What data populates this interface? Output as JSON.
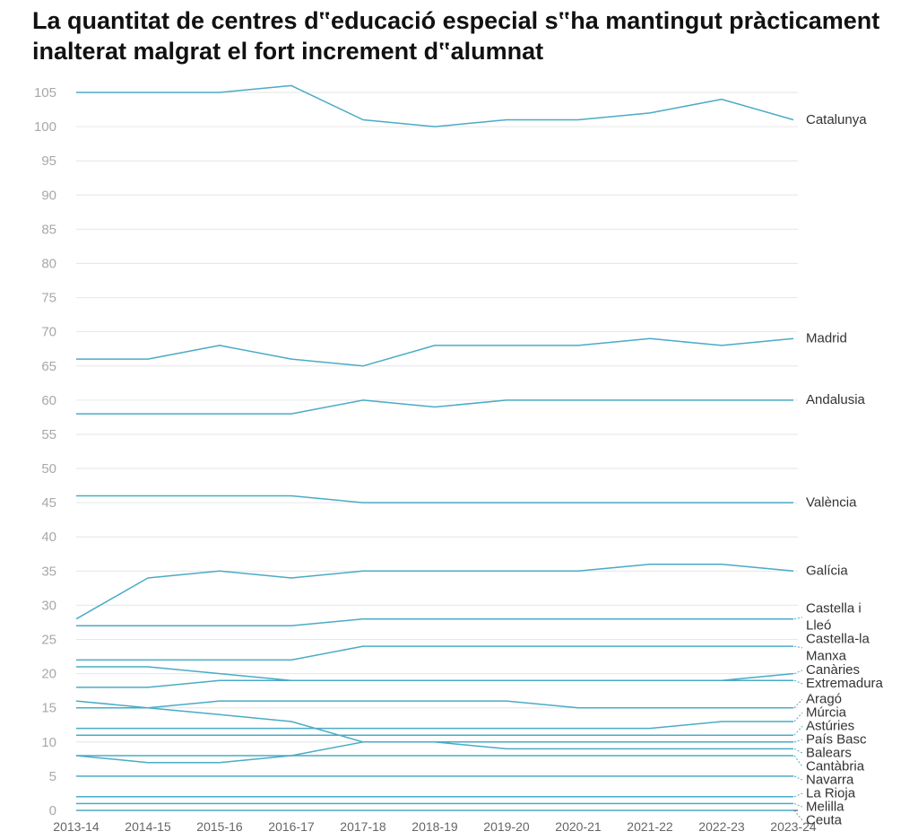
{
  "chart_data": {
    "type": "line",
    "title": "La quantitat de centres d‟educació especial s‟ha mantingut pràcticament inalterat malgrat el fort increment d‟alumnat",
    "x": [
      "2013-14",
      "2014-15",
      "2015-16",
      "2016-17",
      "2017-18",
      "2018-19",
      "2019-20",
      "2020-21",
      "2021-22",
      "2022-23",
      "2023-24"
    ],
    "ylim": [
      0,
      105
    ],
    "yticks": [
      0,
      5,
      10,
      15,
      20,
      25,
      30,
      35,
      40,
      45,
      50,
      55,
      60,
      65,
      70,
      75,
      80,
      85,
      90,
      95,
      100,
      105
    ],
    "grid": true,
    "line_color": "#4aabc6",
    "series": [
      {
        "name": "Catalunya",
        "label_lines": [
          "Catalunya"
        ],
        "values": [
          105,
          105,
          105,
          106,
          101,
          100,
          101,
          101,
          102,
          104,
          101
        ]
      },
      {
        "name": "Madrid",
        "label_lines": [
          "Madrid"
        ],
        "values": [
          66,
          66,
          68,
          66,
          65,
          68,
          68,
          68,
          69,
          68,
          69
        ]
      },
      {
        "name": "Andalusia",
        "label_lines": [
          "Andalusia"
        ],
        "values": [
          58,
          58,
          58,
          58,
          60,
          59,
          60,
          60,
          60,
          60,
          60
        ]
      },
      {
        "name": "València",
        "label_lines": [
          "València"
        ],
        "values": [
          46,
          46,
          46,
          46,
          45,
          45,
          45,
          45,
          45,
          45,
          45
        ]
      },
      {
        "name": "Galícia",
        "label_lines": [
          "Galícia"
        ],
        "values": [
          28,
          34,
          35,
          34,
          35,
          35,
          35,
          35,
          36,
          36,
          35
        ]
      },
      {
        "name": "Castella i Lleó",
        "label_lines": [
          "Castella i",
          "Lleó"
        ],
        "values": [
          27,
          27,
          27,
          27,
          28,
          28,
          28,
          28,
          28,
          28,
          28
        ]
      },
      {
        "name": "Castella-la Manxa",
        "label_lines": [
          "Castella-la",
          "Manxa"
        ],
        "values": [
          22,
          22,
          22,
          22,
          24,
          24,
          24,
          24,
          24,
          24,
          24
        ]
      },
      {
        "name": "Canàries",
        "label_lines": [
          "Canàries"
        ],
        "values": [
          18,
          18,
          19,
          19,
          19,
          19,
          19,
          19,
          19,
          19,
          20
        ]
      },
      {
        "name": "Extremadura",
        "label_lines": [
          "Extremadura"
        ],
        "values": [
          21,
          21,
          20,
          19,
          19,
          19,
          19,
          19,
          19,
          19,
          19
        ]
      },
      {
        "name": "Aragó",
        "label_lines": [
          "Aragó"
        ],
        "values": [
          15,
          15,
          16,
          16,
          16,
          16,
          16,
          15,
          15,
          15,
          15
        ]
      },
      {
        "name": "Múrcia",
        "label_lines": [
          "Múrcia"
        ],
        "values": [
          12,
          12,
          12,
          12,
          12,
          12,
          12,
          12,
          12,
          13,
          13
        ]
      },
      {
        "name": "Astúries",
        "label_lines": [
          "Astúries"
        ],
        "values": [
          11,
          11,
          11,
          11,
          11,
          11,
          11,
          11,
          11,
          11,
          11
        ]
      },
      {
        "name": "País Basc",
        "label_lines": [
          "País Basc"
        ],
        "values": [
          16,
          15,
          14,
          13,
          10,
          10,
          10,
          10,
          10,
          10,
          10
        ]
      },
      {
        "name": "Balears",
        "label_lines": [
          "Balears"
        ],
        "values": [
          8,
          8,
          8,
          8,
          10,
          10,
          9,
          9,
          9,
          9,
          9
        ]
      },
      {
        "name": "Cantàbria",
        "label_lines": [
          "Cantàbria"
        ],
        "values": [
          8,
          7,
          7,
          8,
          8,
          8,
          8,
          8,
          8,
          8,
          8
        ]
      },
      {
        "name": "Navarra",
        "label_lines": [
          "Navarra"
        ],
        "values": [
          5,
          5,
          5,
          5,
          5,
          5,
          5,
          5,
          5,
          5,
          5
        ]
      },
      {
        "name": "La Rioja",
        "label_lines": [
          "La Rioja"
        ],
        "values": [
          2,
          2,
          2,
          2,
          2,
          2,
          2,
          2,
          2,
          2,
          2
        ]
      },
      {
        "name": "Melilla",
        "label_lines": [
          "Melilla"
        ],
        "values": [
          1,
          1,
          1,
          1,
          1,
          1,
          1,
          1,
          1,
          1,
          1
        ]
      },
      {
        "name": "Ceuta",
        "label_lines": [
          "Ceuta"
        ],
        "values": [
          0,
          0,
          0,
          0,
          0,
          0,
          0,
          0,
          0,
          0,
          0
        ]
      }
    ]
  }
}
